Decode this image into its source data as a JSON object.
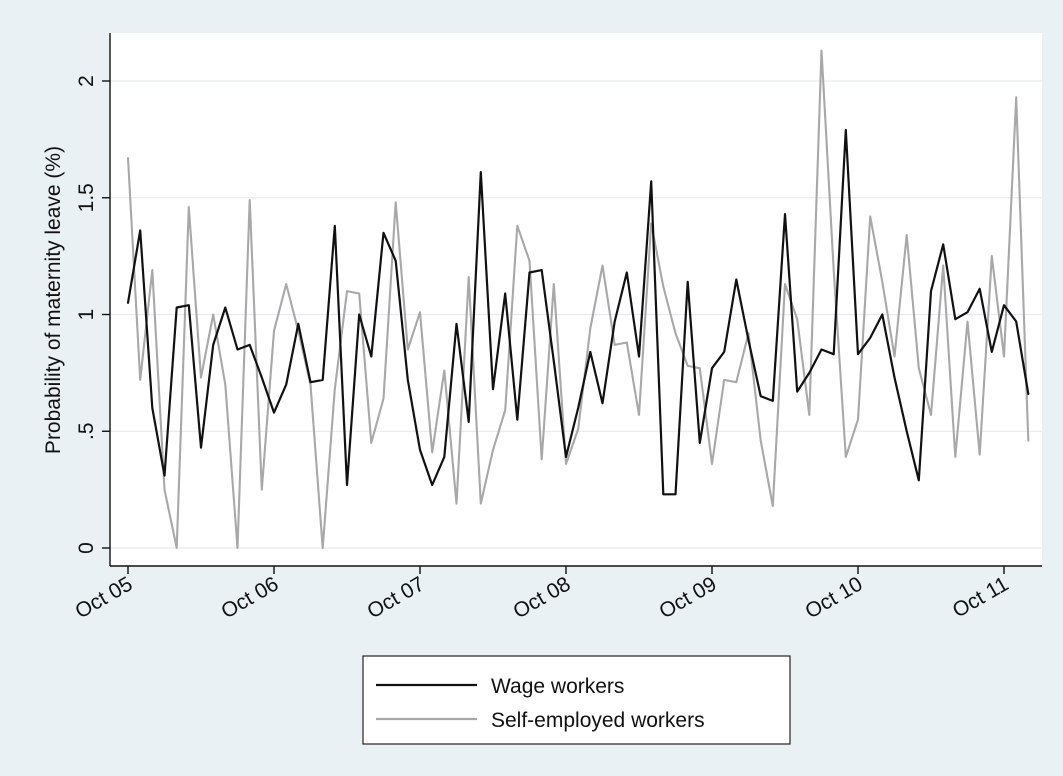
{
  "chart_data": {
    "type": "line",
    "xlabel": "",
    "ylabel": "Probability of maternity leave (%)",
    "ylim": [
      0,
      2.2
    ],
    "yticks": [
      0,
      0.5,
      1,
      1.5,
      2
    ],
    "ytick_labels": [
      "0",
      ".5",
      "1",
      "1.5",
      "2"
    ],
    "xticks": [
      0,
      12,
      24,
      36,
      48,
      60,
      72
    ],
    "xtick_labels": [
      "Oct 05",
      "Oct 06",
      "Oct 07",
      "Oct 08",
      "Oct 09",
      "Oct 10",
      "Oct 11"
    ],
    "x_unit": "months since Oct 05",
    "grid": true,
    "legend_position": "bottom",
    "series": [
      {
        "name": "Wage workers",
        "color": "#111111",
        "values": [
          1.05,
          1.36,
          0.6,
          0.31,
          1.03,
          1.04,
          0.43,
          0.87,
          1.03,
          0.85,
          0.87,
          0.73,
          0.58,
          0.7,
          0.96,
          0.71,
          0.72,
          1.38,
          0.27,
          1.0,
          0.82,
          1.35,
          1.23,
          0.72,
          0.42,
          0.27,
          0.39,
          0.96,
          0.54,
          1.61,
          0.68,
          1.09,
          0.55,
          1.18,
          1.19,
          0.8,
          0.39,
          0.6,
          0.84,
          0.62,
          0.97,
          1.18,
          0.82,
          1.57,
          0.23,
          0.23,
          1.14,
          0.45,
          0.77,
          0.84,
          1.15,
          0.89,
          0.65,
          0.63,
          1.43,
          0.67,
          0.75,
          0.85,
          0.83,
          1.79,
          0.83,
          0.9,
          1.0,
          0.73,
          0.5,
          0.29,
          1.1,
          1.3,
          0.98,
          1.01,
          1.11,
          0.84,
          1.04,
          0.97,
          0.66
        ]
      },
      {
        "name": "Self-employed workers",
        "color": "#a8a8a8",
        "values": [
          1.67,
          0.72,
          1.19,
          0.25,
          0.0,
          1.46,
          0.73,
          1.0,
          0.7,
          0.0,
          1.49,
          0.25,
          0.93,
          1.13,
          0.93,
          0.7,
          0.0,
          0.68,
          1.1,
          1.09,
          0.45,
          0.64,
          1.48,
          0.85,
          1.01,
          0.41,
          0.76,
          0.19,
          1.16,
          0.19,
          0.42,
          0.59,
          1.38,
          1.23,
          0.38,
          1.13,
          0.36,
          0.51,
          0.94,
          1.21,
          0.87,
          0.88,
          0.57,
          1.39,
          1.12,
          0.92,
          0.78,
          0.77,
          0.36,
          0.72,
          0.71,
          0.92,
          0.46,
          0.18,
          1.13,
          0.98,
          0.57,
          2.13,
          1.19,
          0.39,
          0.55,
          1.42,
          1.14,
          0.82,
          1.34,
          0.77,
          0.57,
          1.21,
          0.39,
          0.97,
          0.4,
          1.25,
          0.82,
          1.93,
          0.46
        ]
      }
    ]
  }
}
